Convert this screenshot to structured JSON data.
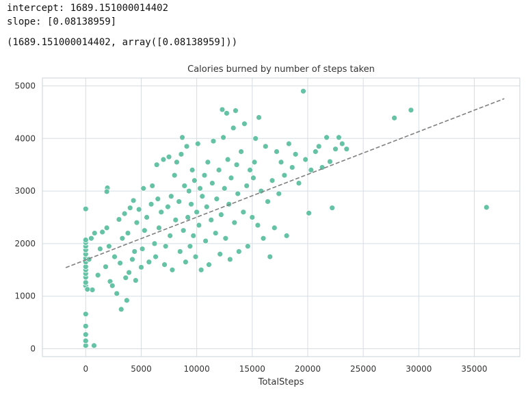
{
  "output": {
    "line1": "intercept: 1689.151000014402",
    "line2": "slope: [0.08138959]",
    "line3": "(1689.151000014402, array([0.08138959]))"
  },
  "colors": {
    "points": "#66c2a5",
    "point_edge": "#ffffff",
    "trendline": "#7f7f7f",
    "grid": "#d5dde3",
    "frame": "#c9d3da"
  },
  "chart_data": {
    "type": "scatter",
    "title": "Calories burned by number of steps taken",
    "xlabel": "TotalSteps",
    "ylabel": "",
    "xlim": [
      -3900,
      39100
    ],
    "ylim": [
      -150,
      5150
    ],
    "xticks": [
      0,
      5000,
      10000,
      15000,
      20000,
      25000,
      30000,
      35000
    ],
    "yticks": [
      0,
      1000,
      2000,
      3000,
      4000,
      5000
    ],
    "grid": true,
    "regression_line": {
      "intercept": 1689.151000014402,
      "slope": 0.08138959,
      "x_start": -1800,
      "x_end": 37700,
      "style": "dashed"
    },
    "points": [
      [
        0,
        60
      ],
      [
        0,
        150
      ],
      [
        0,
        270
      ],
      [
        0,
        430
      ],
      [
        0,
        660
      ],
      [
        0,
        1200
      ],
      [
        0,
        1260
      ],
      [
        0,
        1360
      ],
      [
        0,
        1430
      ],
      [
        0,
        1500
      ],
      [
        0,
        1560
      ],
      [
        0,
        1650
      ],
      [
        0,
        1720
      ],
      [
        0,
        1800
      ],
      [
        0,
        1880
      ],
      [
        0,
        1950
      ],
      [
        0,
        2020
      ],
      [
        0,
        2070
      ],
      [
        0,
        2660
      ],
      [
        750,
        60
      ],
      [
        600,
        1120
      ],
      [
        150,
        1130
      ],
      [
        300,
        1700
      ],
      [
        500,
        2100
      ],
      [
        800,
        2200
      ],
      [
        1100,
        1400
      ],
      [
        1300,
        1900
      ],
      [
        1500,
        2220
      ],
      [
        1800,
        1560
      ],
      [
        1900,
        2300
      ],
      [
        1950,
        3060
      ],
      [
        1900,
        2990
      ],
      [
        2100,
        1950
      ],
      [
        2200,
        1280
      ],
      [
        2400,
        1200
      ],
      [
        2600,
        1750
      ],
      [
        2800,
        1050
      ],
      [
        3000,
        2460
      ],
      [
        3100,
        1630
      ],
      [
        3200,
        750
      ],
      [
        3300,
        2100
      ],
      [
        3500,
        2570
      ],
      [
        3600,
        1350
      ],
      [
        3700,
        920
      ],
      [
        3800,
        2200
      ],
      [
        3900,
        1450
      ],
      [
        4000,
        2680
      ],
      [
        4200,
        1700
      ],
      [
        4300,
        2820
      ],
      [
        4400,
        1850
      ],
      [
        4500,
        1300
      ],
      [
        4600,
        2400
      ],
      [
        4800,
        2650
      ],
      [
        5000,
        1550
      ],
      [
        5100,
        1900
      ],
      [
        5200,
        3050
      ],
      [
        5300,
        2250
      ],
      [
        5500,
        2500
      ],
      [
        5700,
        1650
      ],
      [
        5900,
        2750
      ],
      [
        6000,
        3100
      ],
      [
        6200,
        2000
      ],
      [
        6300,
        1750
      ],
      [
        6400,
        3500
      ],
      [
        6500,
        2850
      ],
      [
        6600,
        2300
      ],
      [
        6800,
        2600
      ],
      [
        7000,
        3600
      ],
      [
        7100,
        1600
      ],
      [
        7200,
        1950
      ],
      [
        7400,
        2700
      ],
      [
        7500,
        3650
      ],
      [
        7600,
        2150
      ],
      [
        7700,
        2900
      ],
      [
        7800,
        1500
      ],
      [
        8000,
        3300
      ],
      [
        8100,
        2450
      ],
      [
        8200,
        3550
      ],
      [
        8400,
        2800
      ],
      [
        8500,
        1850
      ],
      [
        8600,
        3700
      ],
      [
        8700,
        4020
      ],
      [
        8800,
        2250
      ],
      [
        8900,
        3100
      ],
      [
        9000,
        1650
      ],
      [
        9100,
        3850
      ],
      [
        9200,
        2500
      ],
      [
        9300,
        3000
      ],
      [
        9400,
        1950
      ],
      [
        9500,
        2750
      ],
      [
        9600,
        3400
      ],
      [
        9700,
        2150
      ],
      [
        9800,
        3200
      ],
      [
        9900,
        1750
      ],
      [
        10000,
        2600
      ],
      [
        10100,
        3900
      ],
      [
        10200,
        2350
      ],
      [
        10300,
        3050
      ],
      [
        10400,
        1500
      ],
      [
        10500,
        2900
      ],
      [
        10700,
        3300
      ],
      [
        10800,
        2050
      ],
      [
        10900,
        2700
      ],
      [
        11000,
        3550
      ],
      [
        11100,
        1600
      ],
      [
        11300,
        2450
      ],
      [
        11400,
        3150
      ],
      [
        11500,
        3950
      ],
      [
        11700,
        2200
      ],
      [
        11800,
        2850
      ],
      [
        12000,
        3400
      ],
      [
        12100,
        1800
      ],
      [
        12200,
        2550
      ],
      [
        12300,
        4550
      ],
      [
        12400,
        4020
      ],
      [
        12500,
        3050
      ],
      [
        12600,
        2100
      ],
      [
        12700,
        4480
      ],
      [
        12800,
        3600
      ],
      [
        12900,
        2750
      ],
      [
        13000,
        1700
      ],
      [
        13100,
        3250
      ],
      [
        13300,
        4200
      ],
      [
        13400,
        2400
      ],
      [
        13500,
        4530
      ],
      [
        13600,
        3500
      ],
      [
        13700,
        2950
      ],
      [
        13800,
        1850
      ],
      [
        14000,
        3750
      ],
      [
        14200,
        2600
      ],
      [
        14300,
        4280
      ],
      [
        14500,
        3100
      ],
      [
        14600,
        1950
      ],
      [
        14800,
        3400
      ],
      [
        15000,
        2500
      ],
      [
        15100,
        3250
      ],
      [
        15200,
        3550
      ],
      [
        15300,
        4000
      ],
      [
        15500,
        2350
      ],
      [
        15600,
        4400
      ],
      [
        15800,
        3000
      ],
      [
        16000,
        2100
      ],
      [
        16200,
        3850
      ],
      [
        16400,
        2800
      ],
      [
        16600,
        1750
      ],
      [
        16800,
        3200
      ],
      [
        17000,
        2300
      ],
      [
        17200,
        3750
      ],
      [
        17400,
        2950
      ],
      [
        17600,
        3550
      ],
      [
        17900,
        3300
      ],
      [
        18100,
        2150
      ],
      [
        18300,
        3900
      ],
      [
        18600,
        3450
      ],
      [
        18900,
        3700
      ],
      [
        19200,
        3150
      ],
      [
        19600,
        4900
      ],
      [
        19800,
        3600
      ],
      [
        20100,
        2580
      ],
      [
        20300,
        3400
      ],
      [
        20700,
        3750
      ],
      [
        21000,
        3850
      ],
      [
        21300,
        3450
      ],
      [
        21700,
        4020
      ],
      [
        22000,
        3560
      ],
      [
        22200,
        2680
      ],
      [
        22500,
        3800
      ],
      [
        22800,
        4020
      ],
      [
        23100,
        3900
      ],
      [
        23500,
        3800
      ],
      [
        27800,
        4390
      ],
      [
        29300,
        4540
      ],
      [
        36100,
        2690
      ]
    ]
  }
}
